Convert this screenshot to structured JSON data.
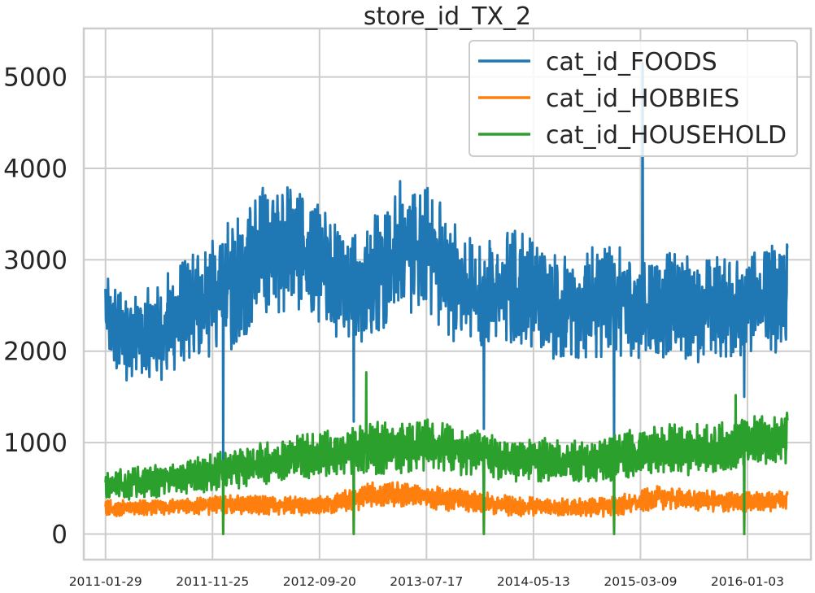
{
  "chart_data": {
    "type": "line",
    "title": "store_id_TX_2",
    "xlabel": "",
    "ylabel": "",
    "ylim": [
      -280,
      5530
    ],
    "xlim": [
      "2010-11-29",
      "2016-06-29"
    ],
    "y_ticks": [
      0,
      1000,
      2000,
      3000,
      4000,
      5000
    ],
    "y_tick_labels": [
      "0",
      "1000",
      "2000",
      "3000",
      "4000",
      "5000"
    ],
    "x_ticks": [
      "2011-01-29",
      "2011-11-25",
      "2012-09-20",
      "2013-07-17",
      "2014-05-13",
      "2015-03-09",
      "2016-01-03"
    ],
    "x_tick_labels": [
      "2011-01-29",
      "2011-11-25",
      "2012-09-20",
      "2013-07-17",
      "2014-05-13",
      "2015-03-09",
      "2016-01-03"
    ],
    "grid": true,
    "legend_position": "top-right",
    "series": [
      {
        "name": "cat_id_FOODS",
        "color": "#1f77b4",
        "x": [
          "2011-01-29",
          "2011-03-15",
          "2011-05-01",
          "2011-06-15",
          "2011-08-01",
          "2011-09-15",
          "2011-11-01",
          "2011-12-15",
          "2012-02-01",
          "2012-03-15",
          "2012-05-01",
          "2012-06-15",
          "2012-08-01",
          "2012-09-15",
          "2012-11-01",
          "2012-12-15",
          "2013-02-01",
          "2013-03-15",
          "2013-05-01",
          "2013-06-15",
          "2013-08-01",
          "2013-09-15",
          "2013-11-01",
          "2013-12-15",
          "2014-02-01",
          "2014-03-15",
          "2014-05-01",
          "2014-06-15",
          "2014-08-01",
          "2014-09-15",
          "2014-11-01",
          "2014-12-15",
          "2015-02-01",
          "2015-03-15",
          "2015-05-01",
          "2015-06-15",
          "2015-08-01",
          "2015-09-15",
          "2015-11-01",
          "2015-12-15",
          "2016-02-01",
          "2016-03-15",
          "2016-04-24"
        ],
        "mean": [
          2350,
          2200,
          2150,
          2200,
          2300,
          2450,
          2550,
          2650,
          2800,
          2950,
          3100,
          3200,
          3100,
          2950,
          2800,
          2650,
          2750,
          2950,
          3100,
          3200,
          3050,
          2850,
          2650,
          2600,
          2650,
          2700,
          2650,
          2550,
          2450,
          2450,
          2500,
          2550,
          2500,
          2450,
          2500,
          2500,
          2450,
          2500,
          2450,
          2500,
          2550,
          2600,
          2650
        ],
        "spread": [
          450,
          450,
          400,
          450,
          500,
          550,
          550,
          600,
          650,
          650,
          650,
          650,
          650,
          600,
          600,
          550,
          600,
          600,
          650,
          650,
          600,
          600,
          550,
          550,
          600,
          550,
          550,
          500,
          500,
          500,
          550,
          550,
          500,
          500,
          500,
          500,
          500,
          500,
          500,
          500,
          500,
          550,
          550
        ],
        "dips": [
          [
            "2011-12-25",
            700
          ],
          [
            "2012-12-25",
            1230
          ],
          [
            "2013-12-25",
            1150
          ],
          [
            "2014-12-25",
            880
          ],
          [
            "2015-12-25",
            1500
          ]
        ],
        "peaks": [
          [
            "2015-03-15",
            5150
          ]
        ]
      },
      {
        "name": "cat_id_HOBBIES",
        "color": "#ff7f0e",
        "x": [
          "2011-01-29",
          "2011-05-01",
          "2011-08-01",
          "2011-11-01",
          "2012-02-01",
          "2012-05-01",
          "2012-08-01",
          "2012-11-01",
          "2013-02-01",
          "2013-05-01",
          "2013-08-01",
          "2013-11-01",
          "2014-02-01",
          "2014-05-01",
          "2014-08-01",
          "2014-11-01",
          "2015-02-01",
          "2015-05-01",
          "2015-08-01",
          "2015-11-01",
          "2016-02-01",
          "2016-04-24"
        ],
        "mean": [
          280,
          290,
          300,
          310,
          320,
          310,
          300,
          330,
          420,
          430,
          400,
          370,
          320,
          300,
          290,
          290,
          330,
          400,
          380,
          350,
          360,
          380
        ],
        "spread": [
          80,
          80,
          80,
          90,
          90,
          90,
          90,
          100,
          120,
          120,
          110,
          110,
          100,
          90,
          90,
          90,
          100,
          110,
          100,
          100,
          100,
          100
        ],
        "dips": [
          [
            "2011-12-25",
            0
          ],
          [
            "2012-12-25",
            0
          ],
          [
            "2013-12-25",
            0
          ],
          [
            "2014-12-25",
            0
          ],
          [
            "2015-12-25",
            0
          ]
        ],
        "peaks": []
      },
      {
        "name": "cat_id_HOUSEHOLD",
        "color": "#2ca02c",
        "x": [
          "2011-01-29",
          "2011-05-01",
          "2011-08-01",
          "2011-11-01",
          "2012-02-01",
          "2012-05-01",
          "2012-08-01",
          "2012-11-01",
          "2013-02-01",
          "2013-05-01",
          "2013-08-01",
          "2013-11-01",
          "2014-02-01",
          "2014-05-01",
          "2014-08-01",
          "2014-11-01",
          "2015-02-01",
          "2015-05-01",
          "2015-08-01",
          "2015-11-01",
          "2016-02-01",
          "2016-04-24"
        ],
        "mean": [
          540,
          560,
          600,
          650,
          720,
          790,
          860,
          880,
          920,
          960,
          980,
          900,
          830,
          820,
          800,
          780,
          880,
          920,
          930,
          950,
          1030,
          1050
        ],
        "spread": [
          150,
          150,
          160,
          170,
          190,
          200,
          220,
          230,
          250,
          250,
          250,
          230,
          220,
          210,
          200,
          200,
          230,
          240,
          240,
          240,
          250,
          250
        ],
        "dips": [
          [
            "2011-12-25",
            0
          ],
          [
            "2012-12-25",
            0
          ],
          [
            "2013-12-25",
            0
          ],
          [
            "2014-12-25",
            0
          ],
          [
            "2015-12-25",
            0
          ]
        ],
        "peaks": [
          [
            "2013-01-29",
            1770
          ],
          [
            "2015-12-01",
            1520
          ]
        ]
      }
    ]
  }
}
